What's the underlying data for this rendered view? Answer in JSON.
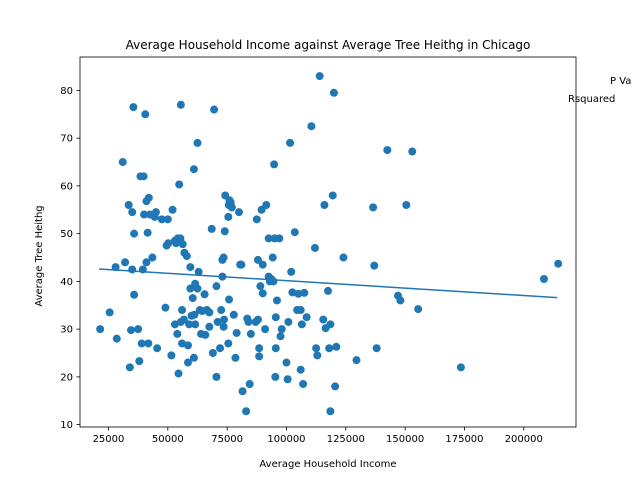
{
  "chart_data": {
    "type": "scatter",
    "title": "Average Household Income against Average Tree Heithg in Chicago",
    "xlabel": "Average Household Income",
    "ylabel": "Average Tree Heithg",
    "xlim": [
      13000,
      222000
    ],
    "ylim": [
      9.5,
      87
    ],
    "xticks": [
      25000,
      50000,
      75000,
      100000,
      125000,
      150000,
      175000,
      200000
    ],
    "xtick_labels": [
      "25000",
      "50000",
      "75000",
      "100000",
      "125000",
      "150000",
      "175000",
      "200000"
    ],
    "yticks": [
      10,
      20,
      30,
      40,
      50,
      60,
      70,
      80
    ],
    "ytick_labels": [
      "10",
      "20",
      "30",
      "40",
      "50",
      "60",
      "70",
      "80"
    ],
    "grid": false,
    "colors": {
      "points": "#1f77b4",
      "line": "#1f77b4"
    },
    "annotations": [
      "P Va",
      "Rsquared"
    ],
    "trendline": {
      "x": [
        21000,
        214000
      ],
      "y": [
        42.6,
        36.6
      ]
    },
    "points": [
      [
        21500,
        30
      ],
      [
        25500,
        33.5
      ],
      [
        28000,
        43
      ],
      [
        28500,
        28
      ],
      [
        31000,
        65
      ],
      [
        32000,
        44
      ],
      [
        33500,
        56
      ],
      [
        34000,
        22
      ],
      [
        34500,
        29.8
      ],
      [
        35000,
        42.5
      ],
      [
        35000,
        54.5
      ],
      [
        35500,
        76.5
      ],
      [
        35800,
        50
      ],
      [
        35800,
        37.2
      ],
      [
        37500,
        30
      ],
      [
        38000,
        23.3
      ],
      [
        38500,
        62
      ],
      [
        39000,
        27
      ],
      [
        39500,
        42.5
      ],
      [
        39800,
        62
      ],
      [
        40000,
        54
      ],
      [
        40500,
        75
      ],
      [
        41000,
        44
      ],
      [
        41000,
        56.8
      ],
      [
        41500,
        50.2
      ],
      [
        41800,
        27
      ],
      [
        42000,
        57.5
      ],
      [
        42500,
        54
      ],
      [
        43500,
        45
      ],
      [
        44500,
        53.5
      ],
      [
        45000,
        54.5
      ],
      [
        45500,
        26
      ],
      [
        47500,
        53
      ],
      [
        49000,
        34.5
      ],
      [
        49500,
        47.5
      ],
      [
        50000,
        53
      ],
      [
        50200,
        48
      ],
      [
        51500,
        24.5
      ],
      [
        52000,
        55
      ],
      [
        53000,
        31
      ],
      [
        53000,
        48.5
      ],
      [
        53500,
        48
      ],
      [
        54000,
        29
      ],
      [
        54200,
        49
      ],
      [
        54500,
        20.7
      ],
      [
        54800,
        60.3
      ],
      [
        55300,
        49
      ],
      [
        55500,
        77
      ],
      [
        55500,
        31.5
      ],
      [
        56000,
        27
      ],
      [
        56000,
        34
      ],
      [
        56300,
        47.8
      ],
      [
        56800,
        32
      ],
      [
        57000,
        46
      ],
      [
        58000,
        45.3
      ],
      [
        58500,
        26.6
      ],
      [
        58500,
        23
      ],
      [
        59000,
        31
      ],
      [
        59500,
        43
      ],
      [
        59500,
        38.5
      ],
      [
        60000,
        32.8
      ],
      [
        60500,
        36.5
      ],
      [
        61000,
        63.5
      ],
      [
        61000,
        24
      ],
      [
        61200,
        33
      ],
      [
        61500,
        39.5
      ],
      [
        61500,
        31
      ],
      [
        62500,
        69
      ],
      [
        62500,
        38.5
      ],
      [
        63000,
        42
      ],
      [
        63500,
        34
      ],
      [
        64000,
        29
      ],
      [
        64500,
        33.8
      ],
      [
        65500,
        37.3
      ],
      [
        65800,
        28.8
      ],
      [
        66500,
        34
      ],
      [
        67500,
        30.5
      ],
      [
        67500,
        33.5
      ],
      [
        68500,
        51
      ],
      [
        69000,
        25
      ],
      [
        69500,
        76
      ],
      [
        70500,
        39
      ],
      [
        70500,
        20
      ],
      [
        71000,
        31.5
      ],
      [
        72000,
        26
      ],
      [
        72500,
        34
      ],
      [
        73000,
        44.5
      ],
      [
        73000,
        41
      ],
      [
        73500,
        45
      ],
      [
        73500,
        30.5
      ],
      [
        73700,
        32
      ],
      [
        74000,
        50.5
      ],
      [
        74200,
        58
      ],
      [
        75500,
        27
      ],
      [
        75800,
        36.2
      ],
      [
        75500,
        53.5
      ],
      [
        75700,
        56
      ],
      [
        76000,
        57
      ],
      [
        76500,
        56.5
      ],
      [
        77000,
        55.5
      ],
      [
        77800,
        33
      ],
      [
        78500,
        24
      ],
      [
        79000,
        29.2
      ],
      [
        80000,
        54.5
      ],
      [
        80500,
        43.5
      ],
      [
        81000,
        43.5
      ],
      [
        81500,
        17
      ],
      [
        83000,
        12.8
      ],
      [
        83500,
        32.2
      ],
      [
        84000,
        31.5
      ],
      [
        84500,
        18.5
      ],
      [
        85000,
        29
      ],
      [
        87000,
        31.5
      ],
      [
        87500,
        53
      ],
      [
        88000,
        44.5
      ],
      [
        88000,
        32
      ],
      [
        88500,
        26
      ],
      [
        88500,
        24.3
      ],
      [
        89000,
        39
      ],
      [
        89500,
        55
      ],
      [
        90000,
        37.5
      ],
      [
        90000,
        43.5
      ],
      [
        91000,
        30
      ],
      [
        91500,
        56
      ],
      [
        92500,
        41
      ],
      [
        92500,
        49
      ],
      [
        93000,
        40
      ],
      [
        93500,
        40.5
      ],
      [
        94200,
        45
      ],
      [
        94500,
        40
      ],
      [
        94800,
        64.5
      ],
      [
        95000,
        49
      ],
      [
        95300,
        20
      ],
      [
        95500,
        26
      ],
      [
        95500,
        32.5
      ],
      [
        96000,
        36
      ],
      [
        97000,
        49
      ],
      [
        97500,
        28.5
      ],
      [
        98000,
        30
      ],
      [
        100000,
        23
      ],
      [
        100500,
        19.5
      ],
      [
        100800,
        31.5
      ],
      [
        101500,
        69
      ],
      [
        102000,
        42
      ],
      [
        102500,
        37.7
      ],
      [
        103500,
        50.3
      ],
      [
        104500,
        34
      ],
      [
        105000,
        37.4
      ],
      [
        106000,
        21.5
      ],
      [
        106000,
        34
      ],
      [
        106500,
        31
      ],
      [
        107000,
        18.5
      ],
      [
        107500,
        37.6
      ],
      [
        108500,
        32.5
      ],
      [
        110500,
        72.5
      ],
      [
        112000,
        47
      ],
      [
        112500,
        26
      ],
      [
        113000,
        24.5
      ],
      [
        114000,
        83
      ],
      [
        115500,
        32
      ],
      [
        116000,
        56
      ],
      [
        116500,
        30.2
      ],
      [
        117500,
        38
      ],
      [
        118000,
        26
      ],
      [
        118500,
        12.8
      ],
      [
        118500,
        31
      ],
      [
        119500,
        58
      ],
      [
        120000,
        79.5
      ],
      [
        120500,
        18
      ],
      [
        121000,
        26.3
      ],
      [
        124000,
        45
      ],
      [
        129500,
        23.5
      ],
      [
        136500,
        55.5
      ],
      [
        137000,
        43.3
      ],
      [
        138000,
        26
      ],
      [
        142500,
        67.5
      ],
      [
        147000,
        37
      ],
      [
        148000,
        36
      ],
      [
        150500,
        56
      ],
      [
        153000,
        67.2
      ],
      [
        155500,
        34.2
      ],
      [
        173500,
        22
      ],
      [
        208500,
        40.5
      ],
      [
        214500,
        43.7
      ]
    ]
  }
}
